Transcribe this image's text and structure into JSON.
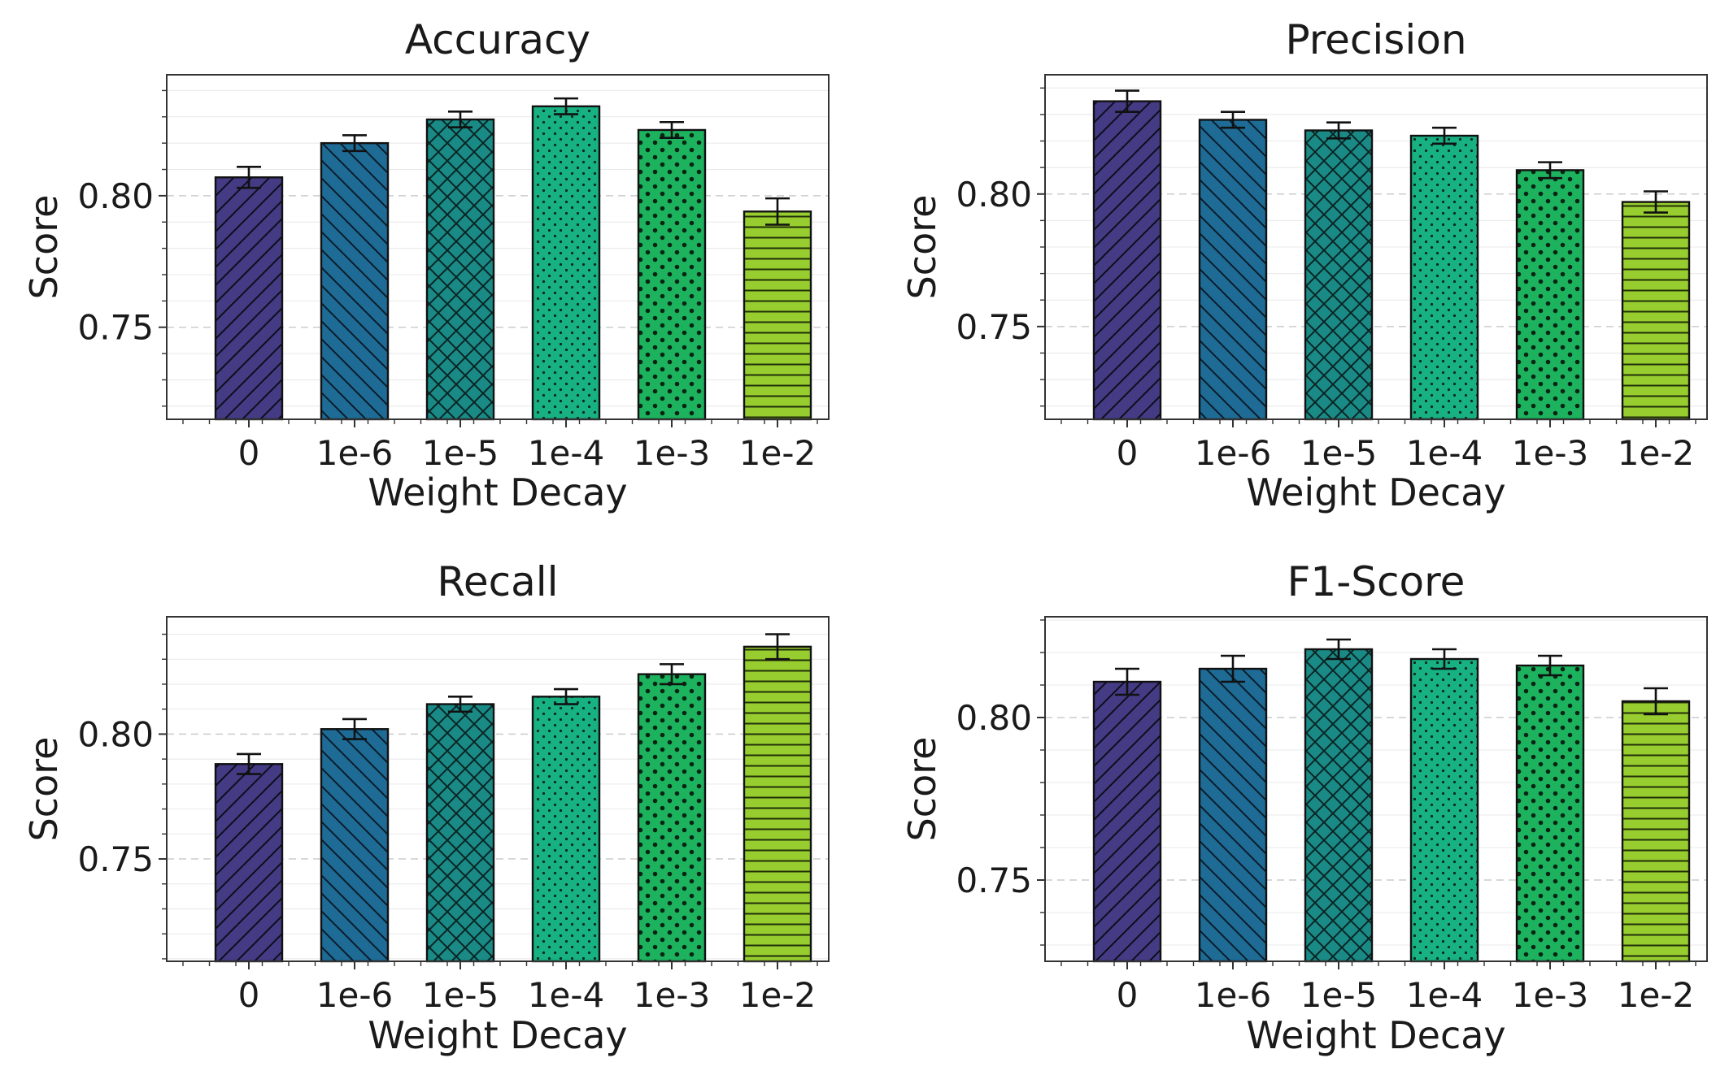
{
  "chart_data": [
    {
      "type": "bar",
      "title": "Accuracy",
      "xlabel": "Weight Decay",
      "ylabel": "Score",
      "categories": [
        "0",
        "1e-6",
        "1e-5",
        "1e-4",
        "1e-3",
        "1e-2"
      ],
      "values": [
        0.807,
        0.82,
        0.829,
        0.834,
        0.825,
        0.794
      ],
      "errors": [
        0.004,
        0.003,
        0.003,
        0.003,
        0.003,
        0.005
      ],
      "ylim": [
        0.715,
        0.846
      ],
      "yticks": [
        0.75,
        0.8
      ],
      "ytick_labels": [
        "0.75",
        "0.80"
      ],
      "grid": true
    },
    {
      "type": "bar",
      "title": "Precision",
      "xlabel": "Weight Decay",
      "ylabel": "Score",
      "categories": [
        "0",
        "1e-6",
        "1e-5",
        "1e-4",
        "1e-3",
        "1e-2"
      ],
      "values": [
        0.835,
        0.828,
        0.824,
        0.822,
        0.809,
        0.797
      ],
      "errors": [
        0.004,
        0.003,
        0.003,
        0.003,
        0.003,
        0.004
      ],
      "ylim": [
        0.715,
        0.845
      ],
      "yticks": [
        0.75,
        0.8
      ],
      "ytick_labels": [
        "0.75",
        "0.80"
      ],
      "grid": true
    },
    {
      "type": "bar",
      "title": "Recall",
      "xlabel": "Weight Decay",
      "ylabel": "Score",
      "categories": [
        "0",
        "1e-6",
        "1e-5",
        "1e-4",
        "1e-3",
        "1e-2"
      ],
      "values": [
        0.788,
        0.802,
        0.812,
        0.815,
        0.824,
        0.835
      ],
      "errors": [
        0.004,
        0.004,
        0.003,
        0.003,
        0.004,
        0.005
      ],
      "ylim": [
        0.709,
        0.847
      ],
      "yticks": [
        0.75,
        0.8
      ],
      "ytick_labels": [
        "0.75",
        "0.80"
      ],
      "grid": true
    },
    {
      "type": "bar",
      "title": "F1-Score",
      "xlabel": "Weight Decay",
      "ylabel": "Score",
      "categories": [
        "0",
        "1e-6",
        "1e-5",
        "1e-4",
        "1e-3",
        "1e-2"
      ],
      "values": [
        0.811,
        0.815,
        0.821,
        0.818,
        0.816,
        0.805
      ],
      "errors": [
        0.004,
        0.004,
        0.003,
        0.003,
        0.003,
        0.004
      ],
      "ylim": [
        0.725,
        0.831
      ],
      "yticks": [
        0.75,
        0.8
      ],
      "ytick_labels": [
        "0.75",
        "0.80"
      ],
      "grid": true
    }
  ],
  "colors": {
    "bars": [
      "#443b84",
      "#1e6b96",
      "#1a8a86",
      "#17b182",
      "#1db35e",
      "#97cd2f"
    ],
    "edge": "#111111",
    "grid": "#cccccc"
  },
  "hatch_patterns": [
    "diagonal-forward",
    "diagonal-back",
    "crosshatch",
    "small-dots",
    "large-dots",
    "horizontal"
  ]
}
